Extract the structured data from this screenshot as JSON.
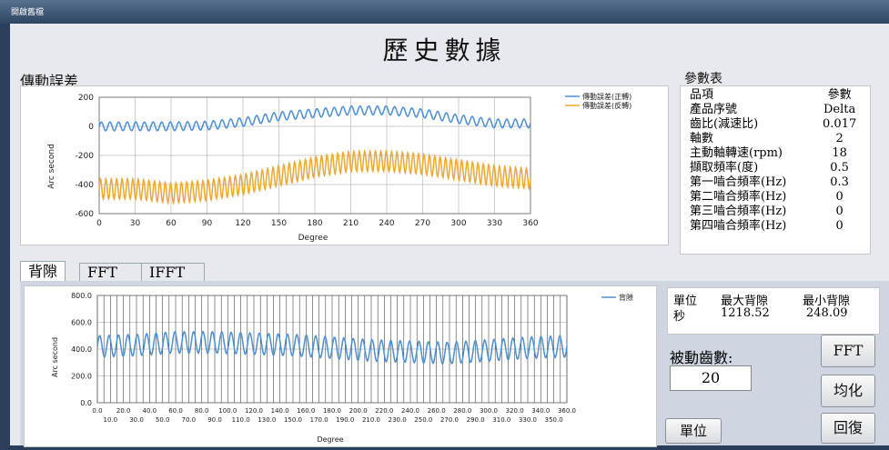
{
  "window": {
    "title": "開啟舊檔"
  },
  "page_title": "歷史數據",
  "transmission_error": {
    "label": "傳動誤差"
  },
  "params": {
    "label": "參數表",
    "header": [
      "品項",
      "參數"
    ],
    "rows": [
      [
        "產品序號",
        "Delta"
      ],
      [
        "齒比(減速比)",
        "0.017"
      ],
      [
        "軸數",
        "2"
      ],
      [
        "主動軸轉速(rpm)",
        "18"
      ],
      [
        "擷取頻率(度)",
        "0.5"
      ],
      [
        "第一嚙合頻率(Hz)",
        "0.3"
      ],
      [
        "第二嚙合頻率(Hz)",
        "0"
      ],
      [
        "第三嚙合頻率(Hz)",
        "0"
      ],
      [
        "第四嚙合頻率(Hz)",
        "0"
      ]
    ]
  },
  "tabs": [
    "背隙",
    "FFT",
    "IFFT"
  ],
  "backlash_table": {
    "header": [
      "單位",
      "最大背隙",
      "最小背隙"
    ],
    "row": [
      "秒",
      "1218.52",
      "248.09"
    ]
  },
  "passive_teeth": {
    "label": "被動齒數:",
    "value": "20"
  },
  "buttons": {
    "fft": "FFT",
    "average": "均化",
    "restore": "回復",
    "unit": "單位"
  },
  "colors": {
    "blue": "#4a8fd6",
    "orange": "#f0a830"
  },
  "chart_data": [
    {
      "type": "line",
      "xlabel": "Degree",
      "ylabel": "Arc second",
      "xlim": [
        0,
        360
      ],
      "ylim": [
        -600,
        200
      ],
      "xticks": [
        0,
        30,
        60,
        90,
        120,
        150,
        180,
        210,
        240,
        270,
        300,
        330,
        360
      ],
      "yticks": [
        200,
        0,
        -200,
        -400,
        -600
      ],
      "grid": true,
      "legend_position": "top-right",
      "series": [
        {
          "name": "傳動誤差(正轉)",
          "color": "#4a8fd6",
          "x": [
            0,
            30,
            60,
            90,
            120,
            150,
            180,
            210,
            240,
            270,
            300,
            330,
            360
          ],
          "y": [
            0,
            0,
            0,
            5,
            30,
            70,
            90,
            110,
            110,
            90,
            50,
            20,
            20
          ]
        },
        {
          "name": "傳動誤差(反轉)",
          "color": "#f0a830",
          "x": [
            0,
            30,
            60,
            90,
            120,
            150,
            180,
            210,
            240,
            270,
            300,
            330,
            360
          ],
          "y": [
            -430,
            -430,
            -460,
            -440,
            -400,
            -340,
            -280,
            -240,
            -240,
            -260,
            -300,
            -340,
            -360
          ]
        }
      ]
    },
    {
      "type": "line",
      "xlabel": "Degree",
      "ylabel": "Arc second",
      "xlim": [
        0,
        360
      ],
      "ylim": [
        0,
        800
      ],
      "yticks": [
        "0.0",
        "200.0",
        "400.0",
        "600.0",
        "800.0"
      ],
      "xticks_upper": [
        "0.0",
        "20.0",
        "40.0",
        "60.0",
        "80.0",
        "100.0",
        "120.0",
        "140.0",
        "160.0",
        "180.0",
        "200.0",
        "220.0",
        "240.0",
        "260.0",
        "280.0",
        "300.0",
        "320.0",
        "340.0",
        "360.0"
      ],
      "xticks_lower": [
        "10.0",
        "30.0",
        "50.0",
        "70.0",
        "90.0",
        "110.0",
        "130.0",
        "150.0",
        "170.0",
        "190.0",
        "210.0",
        "230.0",
        "250.0",
        "270.0",
        "290.0",
        "310.0",
        "330.0",
        "350.0"
      ],
      "grid": true,
      "legend_position": "top-right",
      "series": [
        {
          "name": "背隙",
          "color": "#4a8fd6",
          "x": [
            0,
            30,
            60,
            90,
            120,
            150,
            180,
            210,
            240,
            270,
            300,
            330,
            360
          ],
          "y": [
            420,
            430,
            450,
            450,
            440,
            430,
            410,
            390,
            380,
            370,
            390,
            410,
            420
          ]
        }
      ]
    }
  ]
}
